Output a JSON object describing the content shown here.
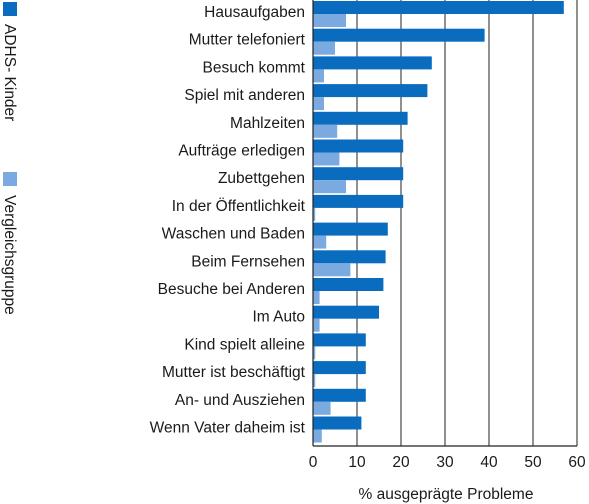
{
  "chart_data": {
    "type": "bar",
    "orientation": "horizontal",
    "categories": [
      "Hausaufgaben",
      "Mutter telefoniert",
      "Besuch kommt",
      "Spiel mit anderen",
      "Mahlzeiten",
      "Aufträge erledigen",
      "Zubettgehen",
      "In der Öffentlichkeit",
      "Waschen und Baden",
      "Beim Fernsehen",
      "Besuche bei Anderen",
      "Im Auto",
      "Kind spielt alleine",
      "Mutter ist beschäftigt",
      "An- und Ausziehen",
      "Wenn Vater daheim ist"
    ],
    "series": [
      {
        "name": "ADHS- Kinder",
        "color": "#0a6cbf",
        "values": [
          57,
          39,
          27,
          26,
          21.5,
          20.5,
          20.5,
          20.5,
          17,
          16.5,
          16,
          15,
          12,
          12,
          12,
          11
        ]
      },
      {
        "name": "Vergleichsgruppe",
        "color": "#7aaae0",
        "values": [
          7.5,
          5,
          2.5,
          2.5,
          5.5,
          6,
          7.5,
          0.5,
          3,
          8.5,
          1.5,
          1.5,
          0.5,
          0.5,
          4,
          2
        ]
      }
    ],
    "xlabel": "% ausgeprägte Probleme",
    "xlim": [
      0,
      60
    ],
    "xticks": [
      0,
      10,
      20,
      30,
      40,
      50,
      60
    ],
    "grid": true,
    "legend_position": "left-vertical"
  }
}
